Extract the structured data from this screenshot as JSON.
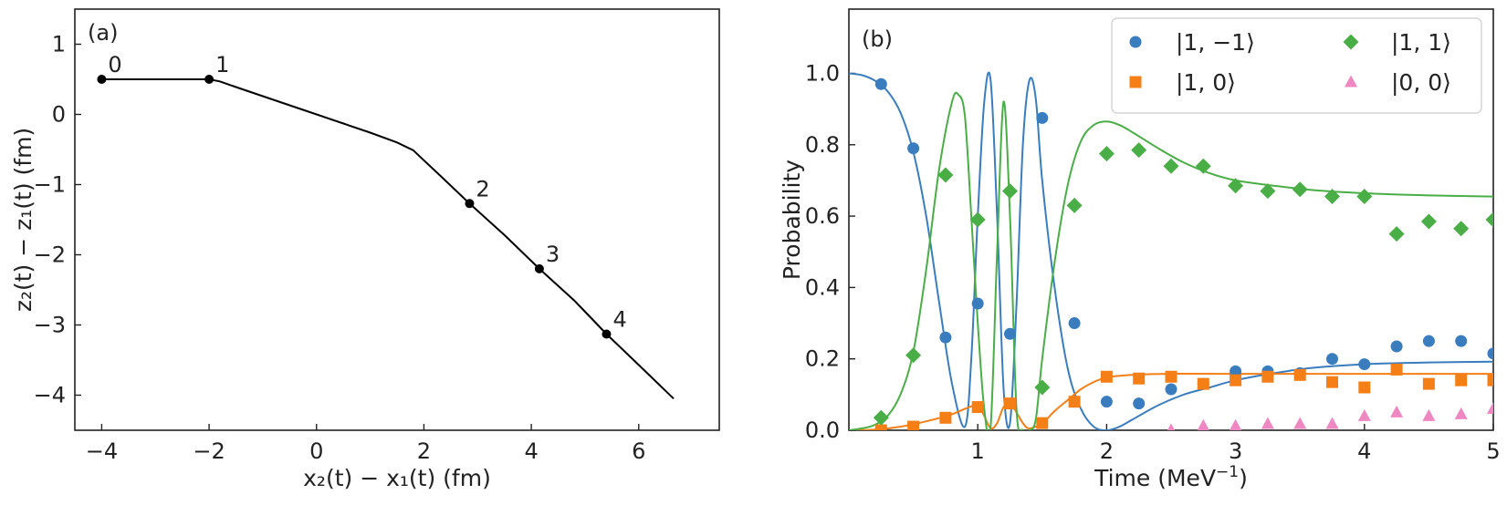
{
  "chart_data": [
    {
      "type": "line",
      "panel_label": "(a)",
      "xlabel": "x₂(t) − x₁(t) (fm)",
      "ylabel": "z₂(t) − z₁(t) (fm)",
      "xlim": [
        -4.5,
        7.5
      ],
      "ylim": [
        -4.5,
        1.5
      ],
      "xticks": [
        -4,
        -2,
        0,
        2,
        4,
        6
      ],
      "xtick_labels": [
        "−4",
        "−2",
        "0",
        "2",
        "4",
        "6"
      ],
      "yticks": [
        1,
        0,
        -1,
        -2,
        -3,
        -4
      ],
      "ytick_labels": [
        "1",
        "0",
        "−1",
        "−2",
        "−3",
        "−4"
      ],
      "trajectory": {
        "x": [
          -4.0,
          -2.0,
          -1.8,
          -1.5,
          -1.0,
          -0.5,
          0.0,
          0.5,
          1.0,
          1.5,
          1.8,
          1.95,
          2.3,
          2.85,
          3.5,
          4.15,
          4.8,
          5.4,
          6.0,
          6.65
        ],
        "y": [
          0.5,
          0.5,
          0.47,
          0.39,
          0.26,
          0.13,
          0.0,
          -0.13,
          -0.26,
          -0.4,
          -0.51,
          -0.62,
          -0.87,
          -1.27,
          -1.72,
          -2.2,
          -2.65,
          -3.13,
          -3.57,
          -4.05
        ]
      },
      "marked_points": [
        {
          "label": "0",
          "x": -4.0,
          "y": 0.5
        },
        {
          "label": "1",
          "x": -2.0,
          "y": 0.5
        },
        {
          "label": "2",
          "x": 2.85,
          "y": -1.27
        },
        {
          "label": "3",
          "x": 4.15,
          "y": -2.2
        },
        {
          "label": "4",
          "x": 5.4,
          "y": -3.13
        }
      ]
    },
    {
      "type": "line+scatter",
      "panel_label": "(b)",
      "xlabel_main": "Time (MeV",
      "xlabel_sup": "−1",
      "xlabel_end": ")",
      "ylabel": "Probability",
      "xlim": [
        0,
        5
      ],
      "ylim": [
        0,
        1.18
      ],
      "xticks": [
        1,
        2,
        3,
        4,
        5
      ],
      "xtick_labels": [
        "1",
        "2",
        "3",
        "4",
        "5"
      ],
      "yticks": [
        0.0,
        0.2,
        0.4,
        0.6,
        0.8,
        1.0
      ],
      "ytick_labels": [
        "0.0",
        "0.2",
        "0.4",
        "0.6",
        "0.8",
        "1.0"
      ],
      "legend_position": "top-right",
      "legend_columns": 2,
      "series": [
        {
          "name": "|1, −1⟩",
          "color": "#3a7dbf",
          "marker": "circle",
          "curve": {
            "x": [
              0.0,
              0.1,
              0.2,
              0.3,
              0.4,
              0.5,
              0.6,
              0.7,
              0.8,
              0.9,
              0.95,
              1.0,
              1.05,
              1.1,
              1.15,
              1.2,
              1.25,
              1.3,
              1.35,
              1.4,
              1.45,
              1.5,
              1.6,
              1.7,
              1.8,
              1.9,
              2.0,
              2.1,
              2.2,
              2.4,
              2.6,
              2.8,
              3.0,
              3.3,
              3.6,
              4.0,
              4.5,
              5.0
            ],
            "y": [
              1.0,
              0.995,
              0.98,
              0.95,
              0.89,
              0.78,
              0.6,
              0.36,
              0.13,
              0.01,
              0.2,
              0.6,
              0.92,
              0.98,
              0.6,
              0.12,
              0.02,
              0.35,
              0.8,
              0.98,
              0.93,
              0.7,
              0.39,
              0.17,
              0.06,
              0.01,
              0.0,
              0.01,
              0.03,
              0.07,
              0.1,
              0.12,
              0.14,
              0.16,
              0.175,
              0.185,
              0.19,
              0.192
            ]
          },
          "points": {
            "x": [
              0.25,
              0.5,
              0.75,
              1.0,
              1.25,
              1.5,
              1.75,
              2.0,
              2.25,
              2.5,
              2.75,
              3.0,
              3.25,
              3.5,
              3.75,
              4.0,
              4.25,
              4.5,
              4.75,
              5.0
            ],
            "y": [
              0.97,
              0.79,
              0.26,
              0.355,
              0.27,
              0.875,
              0.3,
              0.08,
              0.075,
              0.115,
              0.13,
              0.165,
              0.165,
              0.16,
              0.2,
              0.185,
              0.235,
              0.25,
              0.25,
              0.215
            ]
          }
        },
        {
          "name": "|1, 0⟩",
          "color": "#f57f17",
          "marker": "square",
          "curve": {
            "x": [
              0.0,
              0.2,
              0.4,
              0.6,
              0.8,
              0.9,
              1.0,
              1.05,
              1.1,
              1.15,
              1.2,
              1.25,
              1.3,
              1.35,
              1.4,
              1.5,
              1.6,
              1.7,
              1.8,
              1.9,
              2.0,
              2.2,
              2.5,
              3.0,
              4.0,
              5.0
            ],
            "y": [
              0.0,
              0.002,
              0.01,
              0.025,
              0.045,
              0.06,
              0.07,
              0.04,
              0.005,
              0.02,
              0.065,
              0.075,
              0.05,
              0.02,
              0.005,
              0.02,
              0.055,
              0.085,
              0.115,
              0.135,
              0.148,
              0.155,
              0.158,
              0.158,
              0.158,
              0.158
            ]
          },
          "points": {
            "x": [
              0.25,
              0.5,
              0.75,
              1.0,
              1.25,
              1.5,
              1.75,
              2.0,
              2.25,
              2.5,
              2.75,
              3.0,
              3.25,
              3.5,
              3.75,
              4.0,
              4.25,
              4.5,
              4.75,
              5.0
            ],
            "y": [
              0.0,
              0.01,
              0.035,
              0.065,
              0.075,
              0.02,
              0.08,
              0.15,
              0.145,
              0.15,
              0.13,
              0.14,
              0.15,
              0.155,
              0.135,
              0.12,
              0.17,
              0.13,
              0.14,
              0.14
            ]
          }
        },
        {
          "name": "|1, 1⟩",
          "color": "#4aae46",
          "marker": "diamond",
          "curve": {
            "x": [
              0.0,
              0.1,
              0.2,
              0.3,
              0.4,
              0.5,
              0.6,
              0.7,
              0.8,
              0.85,
              0.9,
              0.95,
              1.0,
              1.05,
              1.1,
              1.15,
              1.2,
              1.25,
              1.3,
              1.35,
              1.4,
              1.45,
              1.5,
              1.6,
              1.7,
              1.8,
              1.9,
              2.0,
              2.1,
              2.2,
              2.4,
              2.6,
              2.8,
              3.0,
              3.3,
              3.6,
              4.0,
              4.5,
              5.0
            ],
            "y": [
              0.0,
              0.005,
              0.015,
              0.04,
              0.1,
              0.22,
              0.45,
              0.73,
              0.92,
              0.94,
              0.88,
              0.6,
              0.3,
              0.06,
              0.01,
              0.5,
              0.92,
              0.6,
              0.06,
              0.0,
              0.0,
              0.03,
              0.2,
              0.48,
              0.69,
              0.81,
              0.855,
              0.865,
              0.855,
              0.835,
              0.79,
              0.75,
              0.72,
              0.7,
              0.685,
              0.673,
              0.664,
              0.658,
              0.655
            ]
          },
          "points": {
            "x": [
              0.25,
              0.5,
              0.75,
              1.0,
              1.25,
              1.5,
              1.75,
              2.0,
              2.25,
              2.5,
              2.75,
              3.0,
              3.25,
              3.5,
              3.75,
              4.0,
              4.25,
              4.5,
              4.75,
              5.0
            ],
            "y": [
              0.035,
              0.21,
              0.715,
              0.59,
              0.67,
              0.12,
              0.63,
              0.775,
              0.785,
              0.74,
              0.74,
              0.685,
              0.67,
              0.675,
              0.655,
              0.655,
              0.55,
              0.585,
              0.565,
              0.59
            ]
          }
        },
        {
          "name": "|0, 0⟩",
          "color": "#ef87c2",
          "marker": "triangle",
          "points": {
            "x": [
              2.5,
              2.75,
              3.0,
              3.25,
              3.5,
              3.75,
              4.0,
              4.25,
              4.5,
              4.75,
              5.0
            ],
            "y": [
              0.0,
              0.012,
              0.012,
              0.018,
              0.018,
              0.018,
              0.04,
              0.05,
              0.04,
              0.045,
              0.06
            ]
          }
        }
      ]
    }
  ]
}
